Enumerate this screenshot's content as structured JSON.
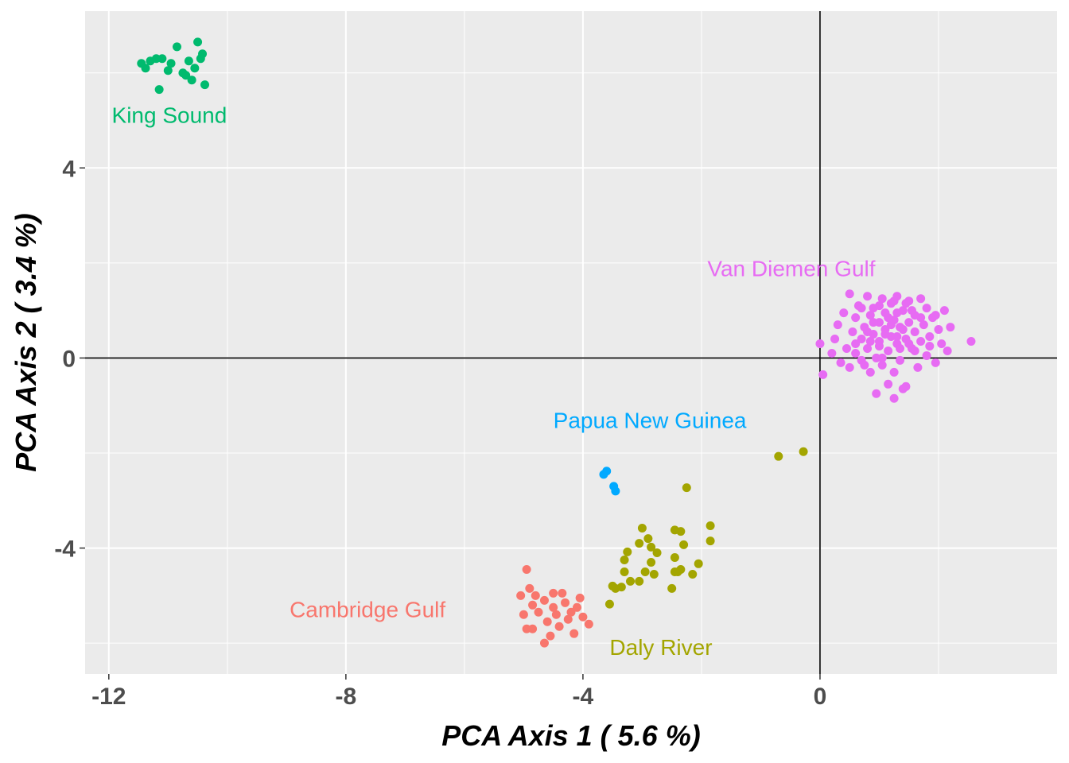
{
  "chart_data": {
    "type": "scatter",
    "xlabel": "PCA Axis 1 ( 5.6 %)",
    "ylabel": "PCA Axis 2 ( 3.4 %)",
    "xlim": [
      -12.4,
      4.0
    ],
    "ylim": [
      -6.65,
      7.3
    ],
    "x_ticks": [
      -12,
      -8,
      -4,
      0
    ],
    "y_ticks": [
      -4,
      0,
      4
    ],
    "x_tick_labels": [
      "-12",
      "-8",
      "-4",
      "0"
    ],
    "y_tick_labels": [
      "-4",
      "0",
      "4"
    ],
    "reference_lines": {
      "x": 0,
      "y": 0
    },
    "grid": true,
    "legend": "none",
    "series": [
      {
        "name": "King Sound",
        "color": "#00BA6E",
        "points": [
          [
            -11.45,
            6.2
          ],
          [
            -11.38,
            6.1
          ],
          [
            -11.3,
            6.25
          ],
          [
            -11.2,
            6.3
          ],
          [
            -11.1,
            6.3
          ],
          [
            -11.0,
            6.05
          ],
          [
            -10.95,
            6.2
          ],
          [
            -10.85,
            6.55
          ],
          [
            -10.75,
            6.0
          ],
          [
            -10.7,
            5.95
          ],
          [
            -10.65,
            6.25
          ],
          [
            -10.6,
            5.85
          ],
          [
            -10.55,
            6.1
          ],
          [
            -10.5,
            6.65
          ],
          [
            -10.45,
            6.3
          ],
          [
            -10.42,
            6.4
          ],
          [
            -10.38,
            5.75
          ],
          [
            -11.15,
            5.65
          ]
        ]
      },
      {
        "name": "Van Diemen Gulf",
        "color": "#E76BF3",
        "points": [
          [
            0.0,
            0.3
          ],
          [
            0.05,
            -0.35
          ],
          [
            0.2,
            0.1
          ],
          [
            0.25,
            0.4
          ],
          [
            0.3,
            0.7
          ],
          [
            0.35,
            -0.1
          ],
          [
            0.4,
            0.95
          ],
          [
            0.45,
            0.2
          ],
          [
            0.5,
            1.35
          ],
          [
            0.5,
            -0.2
          ],
          [
            0.55,
            0.55
          ],
          [
            0.6,
            0.1
          ],
          [
            0.6,
            0.85
          ],
          [
            0.65,
            1.1
          ],
          [
            0.7,
            0.4
          ],
          [
            0.7,
            -0.05
          ],
          [
            0.75,
            0.65
          ],
          [
            0.8,
            1.3
          ],
          [
            0.8,
            0.2
          ],
          [
            0.85,
            -0.3
          ],
          [
            0.85,
            0.9
          ],
          [
            0.9,
            0.5
          ],
          [
            0.9,
            1.05
          ],
          [
            0.95,
            0.0
          ],
          [
            1.0,
            0.75
          ],
          [
            1.0,
            0.35
          ],
          [
            1.05,
            1.25
          ],
          [
            1.05,
            -0.15
          ],
          [
            1.1,
            0.6
          ],
          [
            1.1,
            0.95
          ],
          [
            1.15,
            0.15
          ],
          [
            1.15,
            -0.55
          ],
          [
            1.2,
            0.45
          ],
          [
            1.2,
            1.15
          ],
          [
            1.25,
            0.8
          ],
          [
            1.25,
            -0.3
          ],
          [
            1.3,
            0.3
          ],
          [
            1.3,
            1.3
          ],
          [
            1.35,
            0.65
          ],
          [
            1.35,
            -0.05
          ],
          [
            1.4,
            1.0
          ],
          [
            1.45,
            0.4
          ],
          [
            1.45,
            -0.6
          ],
          [
            1.5,
            0.75
          ],
          [
            1.5,
            1.2
          ],
          [
            1.55,
            0.2
          ],
          [
            1.6,
            0.55
          ],
          [
            1.6,
            0.9
          ],
          [
            1.65,
            -0.2
          ],
          [
            1.7,
            1.25
          ],
          [
            1.7,
            0.35
          ],
          [
            1.75,
            0.7
          ],
          [
            1.8,
            0.05
          ],
          [
            1.8,
            1.05
          ],
          [
            1.85,
            0.45
          ],
          [
            1.9,
            0.85
          ],
          [
            1.95,
            -0.1
          ],
          [
            2.0,
            0.6
          ],
          [
            2.05,
            0.3
          ],
          [
            2.1,
            1.0
          ],
          [
            2.15,
            0.15
          ],
          [
            2.2,
            0.65
          ],
          [
            0.95,
            -0.75
          ],
          [
            1.25,
            -0.85
          ],
          [
            1.4,
            -0.65
          ],
          [
            2.55,
            0.35
          ],
          [
            1.0,
            0.25
          ],
          [
            1.1,
            0.5
          ],
          [
            1.2,
            0.7
          ],
          [
            1.3,
            0.45
          ],
          [
            1.4,
            0.6
          ],
          [
            1.5,
            0.3
          ],
          [
            0.8,
            0.55
          ],
          [
            0.9,
            0.75
          ],
          [
            1.6,
            0.15
          ],
          [
            1.7,
            0.85
          ],
          [
            0.7,
            1.05
          ],
          [
            1.0,
            1.1
          ],
          [
            1.3,
            0.95
          ],
          [
            1.55,
            1.0
          ],
          [
            0.6,
            0.3
          ],
          [
            0.75,
            -0.15
          ],
          [
            1.85,
            0.25
          ],
          [
            1.95,
            0.9
          ],
          [
            1.15,
            0.85
          ],
          [
            1.35,
            0.2
          ],
          [
            0.85,
            0.35
          ],
          [
            1.05,
            0.0
          ],
          [
            1.45,
            1.15
          ],
          [
            1.25,
            1.2
          ]
        ]
      },
      {
        "name": "Papua New Guinea",
        "color": "#00A9FF",
        "points": [
          [
            -3.65,
            -2.45
          ],
          [
            -3.6,
            -2.38
          ],
          [
            -3.48,
            -2.7
          ],
          [
            -3.45,
            -2.8
          ]
        ]
      },
      {
        "name": "Daly River",
        "color": "#A3A500",
        "points": [
          [
            -0.7,
            -2.07
          ],
          [
            -0.28,
            -1.97
          ],
          [
            -2.25,
            -2.73
          ],
          [
            -1.85,
            -3.53
          ],
          [
            -1.85,
            -3.85
          ],
          [
            -2.35,
            -3.65
          ],
          [
            -2.45,
            -3.62
          ],
          [
            -2.3,
            -3.93
          ],
          [
            -2.05,
            -4.33
          ],
          [
            -2.15,
            -4.55
          ],
          [
            -2.35,
            -4.45
          ],
          [
            -2.45,
            -4.2
          ],
          [
            -2.45,
            -4.5
          ],
          [
            -2.5,
            -4.85
          ],
          [
            -2.75,
            -4.1
          ],
          [
            -2.85,
            -4.3
          ],
          [
            -2.95,
            -4.5
          ],
          [
            -3.0,
            -3.58
          ],
          [
            -3.05,
            -4.7
          ],
          [
            -3.2,
            -4.7
          ],
          [
            -3.25,
            -4.08
          ],
          [
            -3.3,
            -4.25
          ],
          [
            -3.3,
            -4.5
          ],
          [
            -3.05,
            -3.9
          ],
          [
            -2.9,
            -3.8
          ],
          [
            -2.85,
            -3.98
          ],
          [
            -3.35,
            -4.82
          ],
          [
            -3.45,
            -4.85
          ],
          [
            -3.55,
            -5.18
          ],
          [
            -3.5,
            -4.8
          ],
          [
            -2.8,
            -4.55
          ],
          [
            -2.4,
            -4.5
          ]
        ]
      },
      {
        "name": "Cambridge Gulf",
        "color": "#F8766D",
        "points": [
          [
            -4.95,
            -4.45
          ],
          [
            -4.9,
            -4.85
          ],
          [
            -4.8,
            -5.0
          ],
          [
            -5.05,
            -5.0
          ],
          [
            -4.85,
            -5.2
          ],
          [
            -4.75,
            -5.35
          ],
          [
            -4.65,
            -5.1
          ],
          [
            -4.6,
            -5.55
          ],
          [
            -4.55,
            -5.85
          ],
          [
            -4.5,
            -5.25
          ],
          [
            -4.45,
            -5.4
          ],
          [
            -4.4,
            -5.65
          ],
          [
            -4.35,
            -4.95
          ],
          [
            -4.3,
            -5.15
          ],
          [
            -4.25,
            -5.5
          ],
          [
            -4.2,
            -5.35
          ],
          [
            -4.15,
            -5.8
          ],
          [
            -4.1,
            -5.25
          ],
          [
            -4.05,
            -5.05
          ],
          [
            -3.9,
            -5.6
          ],
          [
            -4.0,
            -5.45
          ],
          [
            -4.65,
            -6.0
          ],
          [
            -4.95,
            -5.7
          ],
          [
            -5.0,
            -5.4
          ],
          [
            -4.85,
            -5.7
          ],
          [
            -4.5,
            -4.95
          ]
        ]
      }
    ],
    "annotations": [
      {
        "text": "King Sound",
        "x": -11.95,
        "y": 4.95,
        "color": "#00BA6E"
      },
      {
        "text": "Van Diemen Gulf",
        "x": -1.9,
        "y": 1.72,
        "color": "#E76BF3"
      },
      {
        "text": "Papua New Guinea",
        "x": -4.5,
        "y": -1.47,
        "color": "#00A9FF"
      },
      {
        "text": "Cambridge Gulf",
        "x": -8.95,
        "y": -5.45,
        "color": "#F8766D"
      },
      {
        "text": "Daly River",
        "x": -3.55,
        "y": -6.25,
        "color": "#A3A500"
      }
    ]
  }
}
